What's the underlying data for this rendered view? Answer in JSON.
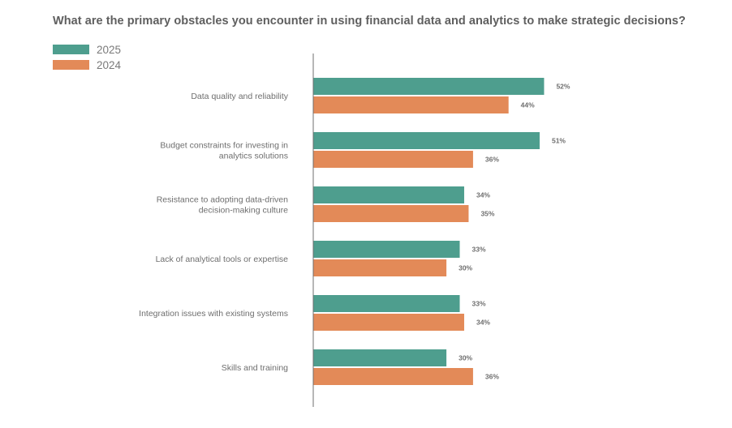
{
  "chart_data": {
    "type": "bar",
    "orientation": "horizontal",
    "title": "What are the primary obstacles you encounter in using financial data and analytics to make strategic decisions?",
    "categories": [
      [
        "Data quality and reliability"
      ],
      [
        "Budget constraints for investing in",
        "analytics solutions"
      ],
      [
        "Resistance to adopting data-driven",
        "decision-making culture"
      ],
      [
        "Lack of analytical tools or expertise"
      ],
      [
        "Integration issues with existing systems"
      ],
      [
        "Skills and training"
      ]
    ],
    "series": [
      {
        "name": "2025",
        "color": "#4e9e8e",
        "values": [
          52,
          51,
          34,
          33,
          33,
          30
        ],
        "labels": [
          "52%",
          "51%",
          "34%",
          "33%",
          "33%",
          "30%"
        ]
      },
      {
        "name": "2024",
        "color": "#e38a58",
        "values": [
          44,
          36,
          35,
          30,
          34,
          36
        ],
        "labels": [
          "44%",
          "36%",
          "35%",
          "30%",
          "34%",
          "36%"
        ]
      }
    ],
    "xlim": [
      0,
      100
    ],
    "legend_position": "top-left",
    "value_unit": "%"
  }
}
